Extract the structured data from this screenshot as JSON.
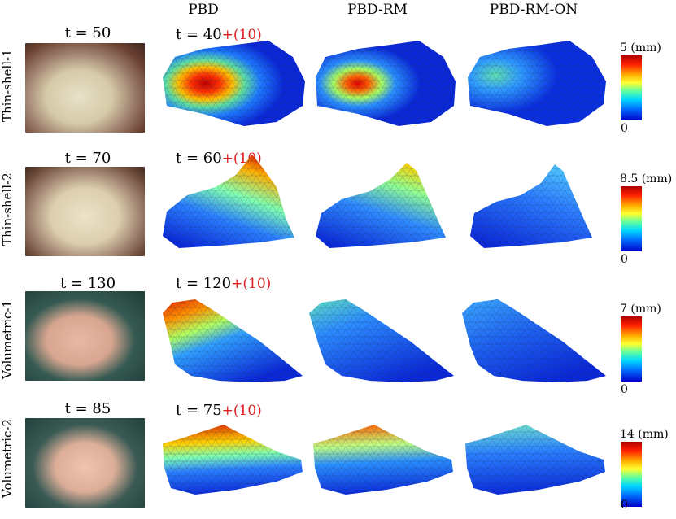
{
  "columns": [
    "PBD",
    "PBD-RM",
    "PBD-RM-ON"
  ],
  "rows": [
    {
      "name": "Thin-shell-1",
      "observed_time": "t = 50",
      "predicted_time": "t = 40",
      "offset": "+(10)",
      "colorbar_max": "5 (mm)",
      "colorbar_min": "0"
    },
    {
      "name": "Thin-shell-2",
      "observed_time": "t = 70",
      "predicted_time": "t = 60",
      "offset": "+(10)",
      "colorbar_max": "8.5 (mm)",
      "colorbar_min": "0"
    },
    {
      "name": "Volumetric-1",
      "observed_time": "t = 130",
      "predicted_time": "t = 120",
      "offset": "+(10)",
      "colorbar_max": "7 (mm)",
      "colorbar_min": "0"
    },
    {
      "name": "Volumetric-2",
      "observed_time": "t = 85",
      "predicted_time": "t = 75",
      "offset": "+(10)",
      "colorbar_max": "14 (mm)",
      "colorbar_min": "0"
    }
  ],
  "colors": {
    "offset_text": "#e02020",
    "mesh_low": "#0000c8",
    "mesh_high": "#c80000"
  }
}
